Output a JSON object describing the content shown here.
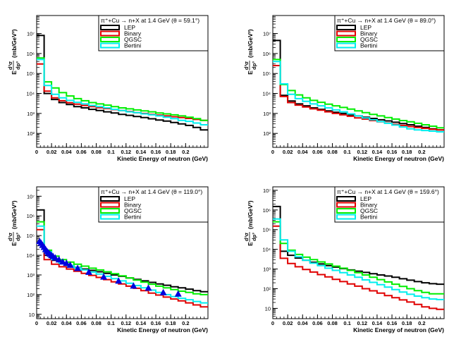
{
  "figure": {
    "background": "#ffffff"
  },
  "chart_data": [
    {
      "type": "line",
      "step": true,
      "title": "π⁺+Cu → n+X at 1.4 GeV (θ =  59.1°)",
      "xlabel": "Kinetic Energy of neutron (GeV)",
      "ylabel": "E d³σ/dp³ (mb/GeV²)",
      "ylabel_prefix": "E",
      "ylabel_num": "d³σ",
      "ylabel_den": "dp³",
      "ylabel_unit": "(mb/GeV²)",
      "xlim": [
        0,
        0.23
      ],
      "ylim": [
        20,
        80000000
      ],
      "yscale": "log",
      "x_ticks": [
        "0",
        "0.02",
        "0.04",
        "0.06",
        "0.08",
        "0.1",
        "0.12",
        "0.14",
        "0.16",
        "0.18",
        "0.2"
      ],
      "y_ticks": [
        {
          "v": 100,
          "label": "10²"
        },
        {
          "v": 1000,
          "label": "10³"
        },
        {
          "v": 10000,
          "label": "10⁴"
        },
        {
          "v": 100000,
          "label": "10⁵"
        },
        {
          "v": 1000000,
          "label": "10⁶"
        },
        {
          "v": 10000000,
          "label": "10⁷"
        }
      ],
      "legend_position": "top-right",
      "bin_edges": [
        0,
        0.01,
        0.02,
        0.03,
        0.04,
        0.05,
        0.06,
        0.07,
        0.08,
        0.09,
        0.1,
        0.11,
        0.12,
        0.13,
        0.14,
        0.15,
        0.16,
        0.17,
        0.18,
        0.19,
        0.2,
        0.21,
        0.22,
        0.23
      ],
      "series": [
        {
          "name": "LEP",
          "color": "#000000",
          "values": [
            8000000,
            10000,
            5000,
            3500,
            2800,
            2200,
            1900,
            1600,
            1400,
            1200,
            1050,
            900,
            800,
            700,
            620,
            540,
            470,
            410,
            350,
            300,
            250,
            200,
            150
          ]
        },
        {
          "name": "Binary",
          "color": "#e00000",
          "values": [
            300000,
            13000,
            6000,
            4300,
            3400,
            2900,
            2500,
            2200,
            1950,
            1750,
            1550,
            1400,
            1250,
            1100,
            1000,
            900,
            820,
            750,
            680,
            620,
            560,
            500,
            450
          ]
        },
        {
          "name": "QGSC",
          "color": "#00ee00",
          "values": [
            600000,
            38000,
            19000,
            11000,
            7500,
            5500,
            4300,
            3500,
            3000,
            2600,
            2200,
            1900,
            1700,
            1500,
            1350,
            1200,
            1050,
            950,
            850,
            750,
            650,
            550,
            450
          ]
        },
        {
          "name": "Bertini",
          "color": "#00eeee",
          "values": [
            500000,
            25000,
            9000,
            6000,
            4500,
            3600,
            3000,
            2500,
            2200,
            1900,
            1600,
            1400,
            1200,
            1100,
            950,
            850,
            750,
            650,
            550,
            450,
            400,
            330,
            270
          ]
        }
      ],
      "data_points": null
    },
    {
      "type": "line",
      "step": true,
      "title": "π⁺+Cu → n+X at 1.4 GeV (θ =  89.0°)",
      "xlabel": "Kinetic Energy of neutron (GeV)",
      "ylabel": "E d³σ/dp³ (mb/GeV²)",
      "ylabel_prefix": "E",
      "ylabel_num": "d³σ",
      "ylabel_den": "dp³",
      "ylabel_unit": "(mb/GeV²)",
      "xlim": [
        0,
        0.23
      ],
      "ylim": [
        20,
        80000000
      ],
      "yscale": "log",
      "x_ticks": [
        "0",
        "0.02",
        "0.04",
        "0.06",
        "0.08",
        "0.1",
        "0.12",
        "0.14",
        "0.16",
        "0.18",
        "0.2"
      ],
      "y_ticks": [
        {
          "v": 100,
          "label": "10²"
        },
        {
          "v": 1000,
          "label": "10³"
        },
        {
          "v": 10000,
          "label": "10⁴"
        },
        {
          "v": 100000,
          "label": "10⁵"
        },
        {
          "v": 1000000,
          "label": "10⁶"
        },
        {
          "v": 10000000,
          "label": "10⁷"
        }
      ],
      "legend_position": "top-right",
      "bin_edges": [
        0,
        0.01,
        0.02,
        0.03,
        0.04,
        0.05,
        0.06,
        0.07,
        0.08,
        0.09,
        0.1,
        0.11,
        0.12,
        0.13,
        0.14,
        0.15,
        0.16,
        0.17,
        0.18,
        0.19,
        0.2,
        0.21,
        0.22,
        0.23
      ],
      "series": [
        {
          "name": "LEP",
          "color": "#000000",
          "values": [
            4500000,
            8000,
            4200,
            3000,
            2400,
            1900,
            1600,
            1350,
            1150,
            1000,
            850,
            750,
            650,
            560,
            480,
            420,
            360,
            310,
            270,
            230,
            200,
            170,
            150
          ]
        },
        {
          "name": "Binary",
          "color": "#e00000",
          "values": [
            250000,
            7000,
            3500,
            2600,
            2100,
            1700,
            1450,
            1200,
            1000,
            850,
            720,
            600,
            520,
            440,
            380,
            330,
            280,
            250,
            220,
            200,
            180,
            160,
            150
          ]
        },
        {
          "name": "QGSC",
          "color": "#00ee00",
          "values": [
            500000,
            28000,
            14000,
            8500,
            6000,
            4500,
            3600,
            2900,
            2400,
            2000,
            1650,
            1350,
            1100,
            900,
            750,
            620,
            520,
            440,
            380,
            320,
            270,
            230,
            190
          ]
        },
        {
          "name": "Bertini",
          "color": "#00eeee",
          "values": [
            400000,
            30000,
            9000,
            5500,
            4000,
            3000,
            2400,
            1900,
            1500,
            1200,
            950,
            750,
            600,
            480,
            390,
            320,
            260,
            210,
            170,
            150,
            140,
            130,
            120
          ]
        }
      ],
      "data_points": null
    },
    {
      "type": "line",
      "step": true,
      "title": "π⁺+Cu → n+X at 1.4 GeV (θ = 119.0°)",
      "xlabel": "Kinetic Energy of neutron (GeV)",
      "ylabel": "E d³σ/dp³ (mb/GeV²)",
      "ylabel_prefix": "E",
      "ylabel_num": "d³σ",
      "ylabel_den": "dp³",
      "ylabel_unit": "(mb/GeV²)",
      "xlim": [
        0,
        0.23
      ],
      "ylim": [
        6,
        30000000
      ],
      "yscale": "log",
      "x_ticks": [
        "0",
        "0.02",
        "0.04",
        "0.06",
        "0.08",
        "0.1",
        "0.12",
        "0.14",
        "0.16",
        "0.18",
        "0.2"
      ],
      "y_ticks": [
        {
          "v": 10,
          "label": "10"
        },
        {
          "v": 100,
          "label": "10²"
        },
        {
          "v": 1000,
          "label": "10³"
        },
        {
          "v": 10000,
          "label": "10⁴"
        },
        {
          "v": 100000,
          "label": "10⁵"
        },
        {
          "v": 1000000,
          "label": "10⁶"
        },
        {
          "v": 10000000,
          "label": "10⁷"
        }
      ],
      "legend_position": "top-right",
      "bin_edges": [
        0,
        0.01,
        0.02,
        0.03,
        0.04,
        0.05,
        0.06,
        0.07,
        0.08,
        0.09,
        0.1,
        0.11,
        0.12,
        0.13,
        0.14,
        0.15,
        0.16,
        0.17,
        0.18,
        0.19,
        0.2,
        0.21,
        0.22,
        0.23
      ],
      "series": [
        {
          "name": "LEP",
          "color": "#000000",
          "values": [
            2000000,
            10000,
            5500,
            3800,
            3000,
            2400,
            2000,
            1700,
            1450,
            1200,
            1000,
            850,
            700,
            600,
            500,
            420,
            350,
            300,
            250,
            220,
            190,
            160,
            140
          ]
        },
        {
          "name": "Binary",
          "color": "#e00000",
          "values": [
            200000,
            6000,
            3500,
            2600,
            2000,
            1550,
            1200,
            950,
            750,
            580,
            450,
            350,
            270,
            210,
            160,
            120,
            95,
            75,
            60,
            48,
            38,
            30,
            24
          ]
        },
        {
          "name": "QGSC",
          "color": "#00ee00",
          "values": [
            500000,
            18000,
            9000,
            6000,
            4500,
            3500,
            2800,
            2200,
            1800,
            1450,
            1150,
            900,
            700,
            550,
            430,
            340,
            270,
            220,
            180,
            150,
            130,
            110,
            100
          ]
        },
        {
          "name": "Bertini",
          "color": "#00eeee",
          "values": [
            300000,
            15000,
            6000,
            4000,
            3000,
            2300,
            1800,
            1400,
            1100,
            850,
            650,
            500,
            380,
            290,
            220,
            170,
            130,
            100,
            80,
            65,
            55,
            45,
            38
          ]
        }
      ],
      "data_points": {
        "name": "data",
        "color": "#0000dd",
        "marker": "triangle",
        "x": [
          0.004,
          0.006,
          0.008,
          0.01,
          0.012,
          0.014,
          0.016,
          0.018,
          0.02,
          0.022,
          0.025,
          0.03,
          0.035,
          0.04,
          0.045,
          0.055,
          0.07,
          0.09,
          0.11,
          0.13,
          0.15,
          0.17,
          0.19
        ],
        "y": [
          52000,
          42000,
          33000,
          26000,
          20000,
          16000,
          13500,
          11500,
          10000,
          9000,
          7500,
          6000,
          4700,
          4000,
          3200,
          2200,
          1400,
          800,
          500,
          280,
          220,
          130,
          110
        ]
      }
    },
    {
      "type": "line",
      "step": true,
      "title": "π⁺+Cu → n+X at 1.4 GeV (θ = 159.6°)",
      "xlabel": "Kinetic Energy of neutron (GeV)",
      "ylabel": "E d³σ/dp³ (mb/GeV²)",
      "ylabel_prefix": "E",
      "ylabel_num": "d³σ",
      "ylabel_den": "dp³",
      "ylabel_unit": "(mb/GeV²)",
      "xlim": [
        0,
        0.23
      ],
      "ylim": [
        3,
        15000000
      ],
      "yscale": "log",
      "x_ticks": [
        "0",
        "0.02",
        "0.04",
        "0.06",
        "0.08",
        "0.1",
        "0.12",
        "0.14",
        "0.16",
        "0.18",
        "0.2"
      ],
      "y_ticks": [
        {
          "v": 10,
          "label": "10"
        },
        {
          "v": 100,
          "label": "10²"
        },
        {
          "v": 1000,
          "label": "10³"
        },
        {
          "v": 10000,
          "label": "10⁴"
        },
        {
          "v": 100000,
          "label": "10⁵"
        },
        {
          "v": 1000000,
          "label": "10⁶"
        },
        {
          "v": 10000000,
          "label": "10⁷"
        }
      ],
      "legend_position": "top-right",
      "bin_edges": [
        0,
        0.01,
        0.02,
        0.03,
        0.04,
        0.05,
        0.06,
        0.07,
        0.08,
        0.09,
        0.1,
        0.11,
        0.12,
        0.13,
        0.14,
        0.15,
        0.16,
        0.17,
        0.18,
        0.19,
        0.2,
        0.21,
        0.22,
        0.23
      ],
      "series": [
        {
          "name": "LEP",
          "color": "#000000",
          "values": [
            1500000,
            8000,
            5000,
            3600,
            2800,
            2200,
            1800,
            1500,
            1250,
            1050,
            900,
            780,
            670,
            580,
            500,
            440,
            380,
            320,
            270,
            230,
            200,
            180,
            170
          ]
        },
        {
          "name": "Binary",
          "color": "#e00000",
          "values": [
            150000,
            3500,
            1900,
            1300,
            950,
            700,
            520,
            400,
            300,
            230,
            175,
            135,
            100,
            78,
            60,
            45,
            35,
            27,
            21,
            16,
            12,
            10,
            9
          ]
        },
        {
          "name": "QGSC",
          "color": "#00ee00",
          "values": [
            250000,
            20000,
            9000,
            5500,
            4000,
            3000,
            2300,
            1800,
            1400,
            1100,
            850,
            650,
            500,
            380,
            290,
            220,
            170,
            130,
            100,
            80,
            65,
            55,
            55
          ]
        },
        {
          "name": "Bertini",
          "color": "#00eeee",
          "values": [
            350000,
            30000,
            8000,
            4200,
            2800,
            2000,
            1500,
            1100,
            850,
            650,
            500,
            380,
            280,
            210,
            160,
            120,
            90,
            68,
            52,
            42,
            35,
            30,
            28
          ]
        }
      ],
      "data_points": null
    }
  ]
}
